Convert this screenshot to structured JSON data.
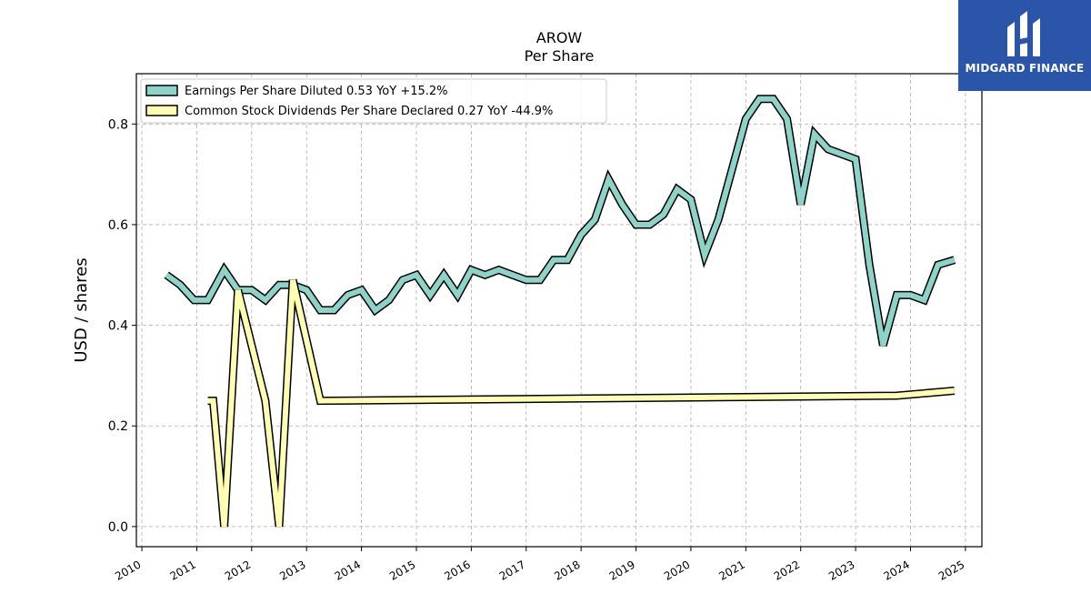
{
  "chart_data": {
    "type": "line",
    "title": "AROW",
    "subtitle": "Per  Share",
    "ylabel": "USD / shares",
    "xlabel": "",
    "xlim": [
      2009.9,
      2025.3
    ],
    "ylim": [
      -0.04,
      0.9
    ],
    "yticks": [
      0.0,
      0.2,
      0.4,
      0.6,
      0.8
    ],
    "ytick_labels": [
      "0.0",
      "0.2",
      "0.4",
      "0.6",
      "0.8"
    ],
    "xticks": [
      2010,
      2011,
      2012,
      2013,
      2014,
      2015,
      2016,
      2017,
      2018,
      2019,
      2020,
      2021,
      2022,
      2023,
      2024,
      2025
    ],
    "xtick_labels": [
      "2010",
      "2011",
      "2012",
      "2013",
      "2014",
      "2015",
      "2016",
      "2017",
      "2018",
      "2019",
      "2020",
      "2021",
      "2022",
      "2023",
      "2024",
      "2025"
    ],
    "grid": true,
    "legend_position": "top-left",
    "series": [
      {
        "name": "Earnings Per Share Diluted  0.53 YoY +15.2%",
        "color": "#8dd3c7",
        "x": [
          2010.45,
          2010.7,
          2010.95,
          2011.2,
          2011.5,
          2011.75,
          2012.0,
          2012.25,
          2012.5,
          2012.75,
          2013.0,
          2013.25,
          2013.5,
          2013.75,
          2014.0,
          2014.25,
          2014.5,
          2014.75,
          2015.0,
          2015.25,
          2015.5,
          2015.75,
          2016.0,
          2016.25,
          2016.5,
          2016.75,
          2017.0,
          2017.25,
          2017.5,
          2017.75,
          2018.0,
          2018.25,
          2018.5,
          2018.75,
          2019.0,
          2019.25,
          2019.5,
          2019.75,
          2020.0,
          2020.25,
          2020.5,
          2020.75,
          2021.0,
          2021.25,
          2021.5,
          2021.75,
          2022.0,
          2022.25,
          2022.5,
          2022.75,
          2023.0,
          2023.25,
          2023.5,
          2023.75,
          2024.0,
          2024.25,
          2024.5,
          2024.8
        ],
        "values": [
          0.5,
          0.48,
          0.45,
          0.45,
          0.51,
          0.47,
          0.47,
          0.45,
          0.48,
          0.48,
          0.47,
          0.43,
          0.43,
          0.46,
          0.47,
          0.43,
          0.45,
          0.49,
          0.5,
          0.46,
          0.5,
          0.46,
          0.51,
          0.5,
          0.51,
          0.5,
          0.49,
          0.49,
          0.53,
          0.53,
          0.58,
          0.61,
          0.69,
          0.64,
          0.6,
          0.6,
          0.62,
          0.67,
          0.65,
          0.54,
          0.61,
          0.71,
          0.81,
          0.85,
          0.85,
          0.81,
          0.64,
          0.78,
          0.75,
          0.74,
          0.73,
          0.52,
          0.36,
          0.46,
          0.46,
          0.45,
          0.52,
          0.53
        ]
      },
      {
        "name": "Common Stock Dividends Per Share Declared  0.27 YoY -44.9%",
        "color": "#ffffb3",
        "x": [
          2011.2,
          2011.3,
          2011.5,
          2011.75,
          2012.0,
          2012.25,
          2012.5,
          2012.75,
          2013.0,
          2013.25,
          2023.75,
          2024.8
        ],
        "values": [
          0.25,
          0.25,
          0.0,
          0.47,
          0.36,
          0.25,
          0.0,
          0.49,
          0.37,
          0.25,
          0.26,
          0.27
        ]
      }
    ]
  },
  "brand": {
    "name": "MIDGARD FINANCE",
    "background_color": "#2b55a8",
    "icon": "midgard-logo-mark"
  }
}
